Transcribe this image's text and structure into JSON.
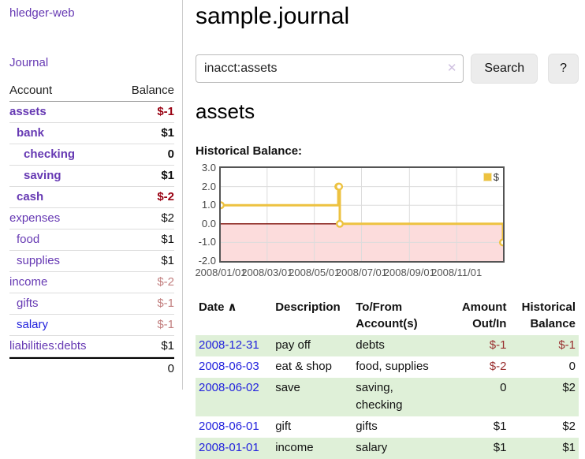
{
  "app": {
    "brand": "hledger-web"
  },
  "sidebar": {
    "journal_label": "Journal",
    "table": {
      "headers": [
        "Account",
        "Balance"
      ],
      "rows": [
        {
          "account": "assets",
          "balance": "$-1",
          "depth": 0,
          "emph": true
        },
        {
          "account": "bank",
          "balance": "$1",
          "depth": 1,
          "emph": true
        },
        {
          "account": "checking",
          "balance": "0",
          "depth": 2,
          "emph": true
        },
        {
          "account": "saving",
          "balance": "$1",
          "depth": 2,
          "emph": true
        },
        {
          "account": "cash",
          "balance": "$-2",
          "depth": 1,
          "emph": true
        },
        {
          "account": "expenses",
          "balance": "$2",
          "depth": 0,
          "emph": false
        },
        {
          "account": "food",
          "balance": "$1",
          "depth": 1,
          "emph": false
        },
        {
          "account": "supplies",
          "balance": "$1",
          "depth": 1,
          "emph": false
        },
        {
          "account": "income",
          "balance": "$-2",
          "depth": 0,
          "emph": false
        },
        {
          "account": "gifts",
          "balance": "$-1",
          "depth": 1,
          "emph": false
        },
        {
          "account": "salary",
          "balance": "$-1",
          "depth": 1,
          "emph": false,
          "link": "blue"
        },
        {
          "account": "liabilities:debts",
          "balance": "$1",
          "depth": 0,
          "emph": false
        }
      ],
      "total": "0"
    }
  },
  "header": {
    "title": "sample.journal"
  },
  "search": {
    "value": "inacct:assets",
    "clear_icon": "✕",
    "button_label": "Search",
    "help_label": "?"
  },
  "account_page": {
    "title": "assets",
    "chart_label": "Historical Balance:"
  },
  "chart_data": {
    "type": "line",
    "step": true,
    "title": "Historical Balance:",
    "series": [
      {
        "name": "$",
        "color": "#edc240",
        "points": [
          [
            "2008-01-01",
            1
          ],
          [
            "2008-06-01",
            2
          ],
          [
            "2008-06-02",
            2
          ],
          [
            "2008-06-03",
            0
          ],
          [
            "2008-12-31",
            -1
          ]
        ]
      }
    ],
    "xdomain": [
      "2008-01-01",
      "2008-12-31"
    ],
    "ylim": [
      -2,
      3
    ],
    "yticks": [
      3,
      2,
      1,
      0,
      -1,
      -2
    ],
    "xticks": [
      "2008/01/01",
      "2008/03/01",
      "2008/05/01",
      "2008/07/01",
      "2008/09/01",
      "2008/11/01"
    ],
    "grid": true,
    "legend_position": "top-right",
    "grid_color": "#dcdcdc",
    "zero_line_color": "#7c0a02",
    "negative_region_color": "#fcdcdc"
  },
  "register": {
    "headers": [
      "Date",
      "Description",
      "To/From Account(s)",
      "Amount Out/In",
      "Historical Balance"
    ],
    "sort_indicator": "∧",
    "rows": [
      {
        "date": "2008-12-31",
        "description": "pay off",
        "accounts": "debts",
        "amount": "$-1",
        "balance": "$-1"
      },
      {
        "date": "2008-06-03",
        "description": "eat & shop",
        "accounts": "food, supplies",
        "amount": "$-2",
        "balance": "0"
      },
      {
        "date": "2008-06-02",
        "description": "save",
        "accounts": "saving, checking",
        "amount": "0",
        "balance": "$2"
      },
      {
        "date": "2008-06-01",
        "description": "gift",
        "accounts": "gifts",
        "amount": "$1",
        "balance": "$2"
      },
      {
        "date": "2008-01-01",
        "description": "income",
        "accounts": "salary",
        "amount": "$1",
        "balance": "$1"
      }
    ]
  },
  "colors": {
    "link_purple": "#6639b3",
    "link_blue": "#2222dd",
    "negative_strong": "#990011",
    "negative_faint": "#c27f7f",
    "negative_table": "#992f2f",
    "row_stripe_green": "#dff0d8",
    "chart_line": "#edc240"
  }
}
